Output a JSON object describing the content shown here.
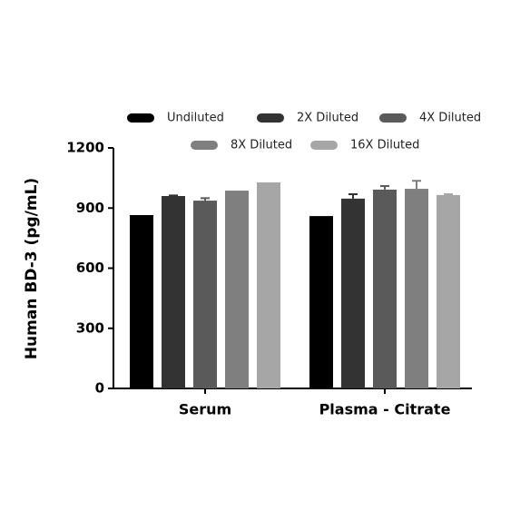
{
  "chart_data": {
    "type": "bar",
    "y_label": "Human BD-3 (pg/mL)",
    "categories": [
      "Serum",
      "Plasma - Citrate"
    ],
    "series": [
      {
        "name": "Undiluted",
        "color": "#000000",
        "values": [
          865,
          860
        ],
        "errors": [
          null,
          null
        ]
      },
      {
        "name": "2X Diluted",
        "color": "#333333",
        "values": [
          960,
          947
        ],
        "errors": [
          3,
          22
        ]
      },
      {
        "name": "4X Diluted",
        "color": "#5a5a5a",
        "values": [
          937,
          992
        ],
        "errors": [
          12,
          18
        ]
      },
      {
        "name": "8X Diluted",
        "color": "#7f7f7f",
        "values": [
          987,
          996
        ],
        "errors": [
          null,
          40
        ]
      },
      {
        "name": "16X Diluted",
        "color": "#a6a6a6",
        "values": [
          1028,
          965
        ],
        "errors": [
          null,
          4
        ]
      }
    ],
    "ylim": [
      0,
      1200
    ],
    "yticks": [
      0,
      300,
      600,
      900,
      1200
    ],
    "legend": "top"
  }
}
